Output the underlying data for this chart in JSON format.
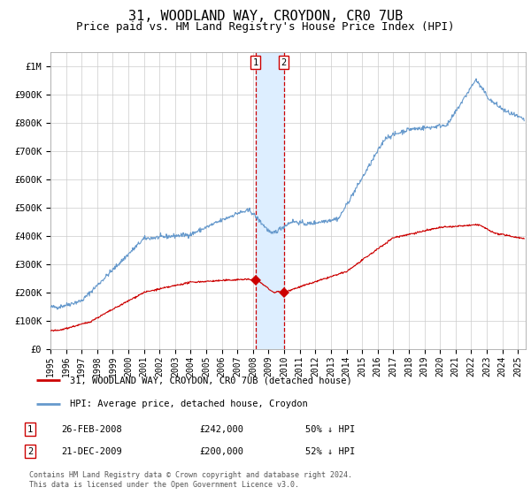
{
  "title": "31, WOODLAND WAY, CROYDON, CR0 7UB",
  "subtitle": "Price paid vs. HM Land Registry's House Price Index (HPI)",
  "title_fontsize": 11,
  "subtitle_fontsize": 9,
  "ylabel_ticks": [
    "£0",
    "£100K",
    "£200K",
    "£300K",
    "£400K",
    "£500K",
    "£600K",
    "£700K",
    "£800K",
    "£900K",
    "£1M"
  ],
  "ytick_values": [
    0,
    100000,
    200000,
    300000,
    400000,
    500000,
    600000,
    700000,
    800000,
    900000,
    1000000
  ],
  "ylim": [
    0,
    1050000
  ],
  "hpi_color": "#6699cc",
  "price_color": "#cc0000",
  "marker_color": "#cc0000",
  "transaction_1": {
    "date_label": "26-FEB-2008",
    "price": 242000,
    "pct": "50% ↓ HPI",
    "year_x": 2008.15
  },
  "transaction_2": {
    "date_label": "21-DEC-2009",
    "price": 200000,
    "pct": "52% ↓ HPI",
    "year_x": 2009.97
  },
  "legend_entry1": "31, WOODLAND WAY, CROYDON, CR0 7UB (detached house)",
  "legend_entry2": "HPI: Average price, detached house, Croydon",
  "footnote": "Contains HM Land Registry data © Crown copyright and database right 2024.\nThis data is licensed under the Open Government Licence v3.0.",
  "xmin": 1995.0,
  "xmax": 2025.5,
  "background_color": "#ffffff",
  "grid_color": "#cccccc",
  "shade_color": "#ddeeff",
  "dashed_line_color": "#cc0000",
  "xtick_years": [
    1995,
    1996,
    1997,
    1998,
    1999,
    2000,
    2001,
    2002,
    2003,
    2004,
    2005,
    2006,
    2007,
    2008,
    2009,
    2010,
    2011,
    2012,
    2013,
    2014,
    2015,
    2016,
    2017,
    2018,
    2019,
    2020,
    2021,
    2022,
    2023,
    2024,
    2025
  ]
}
